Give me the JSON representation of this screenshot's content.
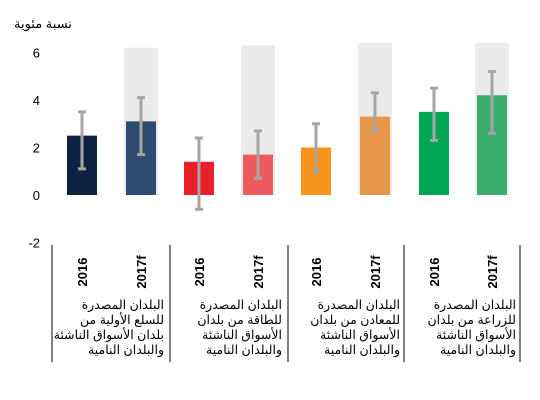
{
  "chart_data": {
    "type": "bar",
    "ylabel": "نسبة مئوية",
    "ylim": [
      -2,
      6
    ],
    "yticks": [
      "6",
      "4",
      "2",
      "0",
      "-2"
    ],
    "grid": false,
    "categories": [
      "2016",
      "2017f",
      "2016",
      "2017f",
      "2016",
      "2017f",
      "2016",
      "2017f"
    ],
    "values": [
      2.5,
      3.1,
      1.4,
      1.7,
      2.0,
      3.3,
      3.5,
      4.2
    ],
    "error_low": [
      1.1,
      1.7,
      -0.6,
      0.7,
      1.0,
      2.7,
      2.3,
      2.6
    ],
    "error_high": [
      3.5,
      4.1,
      2.4,
      2.7,
      3.0,
      4.3,
      4.5,
      5.2
    ],
    "background_range_high": [
      null,
      6.2,
      null,
      6.3,
      null,
      6.4,
      null,
      6.4
    ],
    "groups": [
      {
        "label": "البلدان المصدرة للسلع الأولية من بلدان الأسواق الناشئة والبلدان النامية",
        "bars": [
          0,
          1
        ]
      },
      {
        "label": "البلدان المصدرة للطاقة من بلدان الأسواق الناشئة والبلدان النامية",
        "bars": [
          2,
          3
        ]
      },
      {
        "label": "البلدان المصدرة للمعادن من بلدان الأسواق الناشئة والبلدان النامية",
        "bars": [
          4,
          5
        ]
      },
      {
        "label": "البلدان المصدرة للزراعة من بلدان الأسواق الناشئة والبلدان النامية",
        "bars": [
          6,
          7
        ]
      }
    ],
    "colors": [
      "#0d2240",
      "#2d4a6f",
      "#e8202a",
      "#ee5b5f",
      "#f7941d",
      "#e8974a",
      "#00a651",
      "#3aad6a"
    ],
    "background_color": "#ebebeb",
    "error_color": "#a6a6a6"
  }
}
